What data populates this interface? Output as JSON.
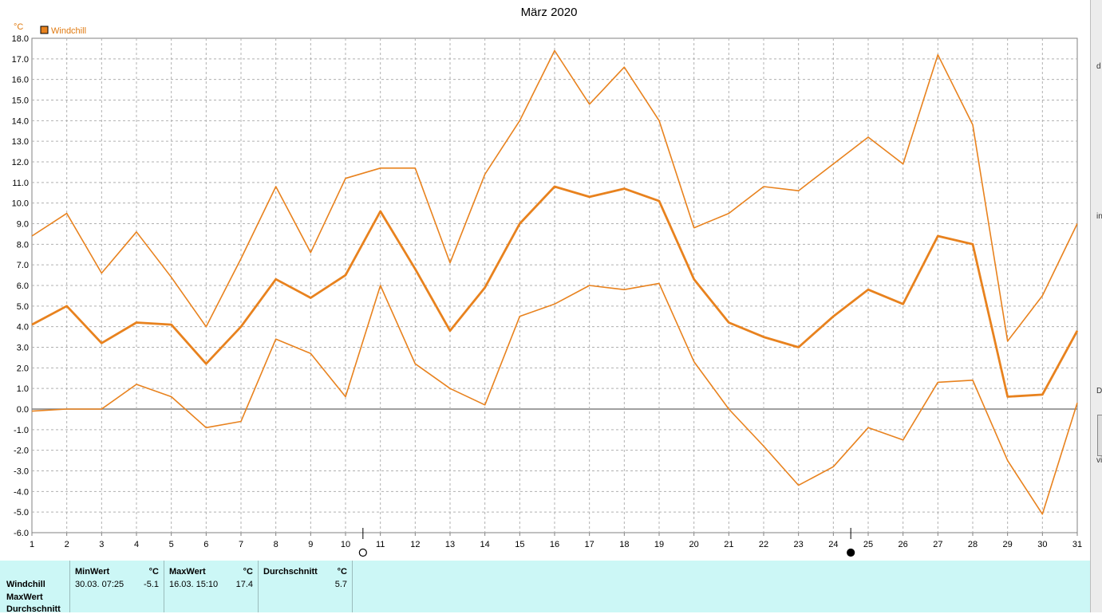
{
  "chart_data": {
    "type": "line",
    "title": "März 2020",
    "y_unit": "°C",
    "legend": [
      {
        "name": "Windchill",
        "color": "#e8821e",
        "position": "top-left"
      }
    ],
    "x": [
      1,
      2,
      3,
      4,
      5,
      6,
      7,
      8,
      9,
      10,
      11,
      12,
      13,
      14,
      15,
      16,
      17,
      18,
      19,
      20,
      21,
      22,
      23,
      24,
      25,
      26,
      27,
      28,
      29,
      30,
      31
    ],
    "xlim": [
      1,
      31
    ],
    "ylim": [
      -6,
      18
    ],
    "y_ticks": [
      "18.0",
      "17.0",
      "16.0",
      "15.0",
      "14.0",
      "13.0",
      "12.0",
      "11.0",
      "10.0",
      "9.0",
      "8.0",
      "7.0",
      "6.0",
      "5.0",
      "4.0",
      "3.0",
      "2.0",
      "1.0",
      "0.0",
      "-1.0",
      "-2.0",
      "-3.0",
      "-4.0",
      "-5.0",
      "-6.0"
    ],
    "grid": true,
    "series": [
      {
        "values": [
          8.4,
          9.5,
          6.6,
          8.6,
          6.4,
          4.0,
          7.3,
          10.8,
          7.6,
          11.2,
          11.7,
          11.7,
          7.1,
          11.4,
          14.0,
          17.4,
          14.8,
          16.6,
          14.0,
          8.8,
          9.5,
          10.8,
          10.6,
          11.9,
          13.2,
          11.9,
          17.2,
          13.8,
          3.3,
          5.5,
          9.0
        ],
        "color": "#e8821e",
        "width": 1.6
      },
      {
        "values": [
          4.1,
          5.0,
          3.2,
          4.2,
          4.1,
          2.2,
          4.0,
          6.3,
          5.4,
          6.5,
          9.6,
          6.8,
          3.8,
          5.9,
          9.0,
          10.8,
          10.3,
          10.7,
          10.1,
          6.3,
          4.2,
          3.5,
          3.0,
          4.5,
          5.8,
          5.1,
          8.4,
          8.0,
          0.6,
          0.7,
          3.8
        ],
        "color": "#e8821e",
        "width": 2.8
      },
      {
        "values": [
          -0.1,
          0.0,
          0.0,
          1.2,
          0.6,
          -0.9,
          -0.6,
          3.4,
          2.7,
          0.6,
          6.0,
          2.2,
          1.0,
          0.2,
          4.5,
          5.1,
          6.0,
          5.8,
          6.1,
          2.3,
          0.0,
          -1.8,
          -3.7,
          -2.8,
          -0.9,
          -1.5,
          1.3,
          1.4,
          -2.5,
          -5.1,
          0.3
        ],
        "color": "#e8821e",
        "width": 1.6
      }
    ],
    "moon_markers": [
      {
        "day": 10,
        "phase": "full-moon-icon",
        "symbol": "○"
      },
      {
        "day": 24,
        "phase": "new-moon-icon",
        "symbol": "●"
      }
    ]
  },
  "stats": {
    "row_labels": [
      "Windchill",
      "MaxWert",
      "Durchschnitt"
    ],
    "min": {
      "header": "MinWert",
      "unit": "°C",
      "datetime": "30.03.  07:25",
      "value": "-5.1"
    },
    "max": {
      "header": "MaxWert",
      "unit": "°C",
      "datetime": "16.03.  15:10",
      "value": "17.4"
    },
    "avg": {
      "header": "Durchschnitt",
      "unit": "°C",
      "value": "5.7"
    }
  },
  "right_strip": [
    "d",
    "in",
    "D",
    "vi"
  ],
  "colors": {
    "series": "#e8821e",
    "stats_bg": "#ccf7f6"
  }
}
